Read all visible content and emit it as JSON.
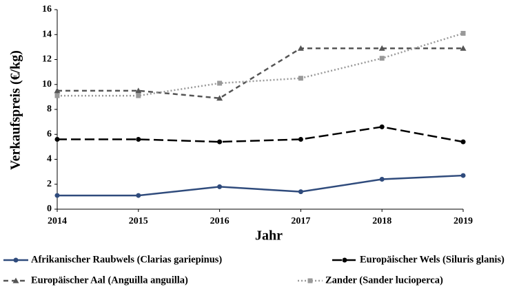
{
  "chart_data": {
    "type": "line",
    "x_label": "Jahr",
    "y_label": "Verkaufspreis (€/kg)",
    "x": [
      2014,
      2015,
      2016,
      2017,
      2018,
      2019
    ],
    "xlim": [
      2014,
      2019
    ],
    "xticks": [
      2014,
      2015,
      2016,
      2017,
      2018,
      2019
    ],
    "ylim": [
      0,
      16
    ],
    "yticks": [
      0,
      2,
      4,
      6,
      8,
      10,
      12,
      14,
      16
    ],
    "grid": false,
    "legend": "bottom",
    "series": [
      {
        "name": "Afrikanischer Raubwels (Clarias gariepinus)",
        "color": "#2f4b7c",
        "style": "solid",
        "marker": "circle",
        "values": [
          1.1,
          1.1,
          1.8,
          1.4,
          2.4,
          2.7
        ]
      },
      {
        "name": "Europäischer Wels (Siluris glanis)",
        "color": "#000000",
        "style": "dashed",
        "marker": "circle",
        "values": [
          5.6,
          5.6,
          5.4,
          5.6,
          6.6,
          5.4
        ]
      },
      {
        "name": "Europäischer Aal (Anguilla anguilla)",
        "color": "#555555",
        "style": "dashed-short",
        "marker": "triangle",
        "values": [
          9.5,
          9.5,
          8.9,
          12.9,
          12.9,
          12.9
        ]
      },
      {
        "name": "Zander (Sander lucioperca)",
        "color": "#999999",
        "style": "dotted",
        "marker": "square",
        "values": [
          9.1,
          9.1,
          10.1,
          10.5,
          12.1,
          14.1
        ]
      }
    ]
  }
}
